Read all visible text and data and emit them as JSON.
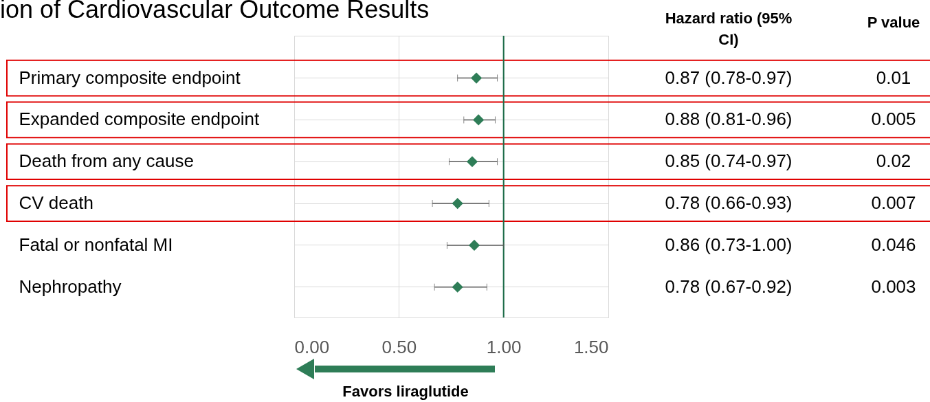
{
  "chart_data": {
    "type": "scatter",
    "orientation": "horizontal",
    "title": "ion of Cardiovascular Outcome Results",
    "categories": [
      "Primary composite endpoint",
      "Expanded composite endpoint",
      "Death from any cause",
      "CV death",
      "Fatal or nonfatal MI",
      "Nephropathy"
    ],
    "values": [
      0.87,
      0.88,
      0.85,
      0.78,
      0.86,
      0.78
    ],
    "errors": [
      [
        0.78,
        0.97
      ],
      [
        0.81,
        0.96
      ],
      [
        0.74,
        0.97
      ],
      [
        0.66,
        0.93
      ],
      [
        0.73,
        1.0
      ],
      [
        0.67,
        0.92
      ]
    ],
    "value_labels": [
      "0.87 (0.78-0.97)",
      "0.88 (0.81-0.96)",
      "0.85 (0.74-0.97)",
      "0.78 (0.66-0.93)",
      "0.86 (0.73-1.00)",
      "0.78 (0.67-0.92)"
    ],
    "color": "#2e7d57",
    "marker": "diamond",
    "xlim": [
      0,
      1.5
    ],
    "xticks": [
      {
        "value": 0,
        "label": "0.00"
      },
      {
        "value": 0.5,
        "label": "0.50"
      },
      {
        "value": 1,
        "label": "1.00"
      },
      {
        "value": 1.5,
        "label": "1.50"
      }
    ],
    "ref_lines": [
      {
        "axis": "x",
        "value": 1,
        "color": "#1e6e4a"
      }
    ],
    "annotations": [
      "Hazard ratio (95% CI)",
      "P value",
      "0.01",
      "0.005",
      "0.02",
      "0.007",
      "0.046",
      "0.003",
      "Favors liraglutide"
    ],
    "grid": true
  }
}
